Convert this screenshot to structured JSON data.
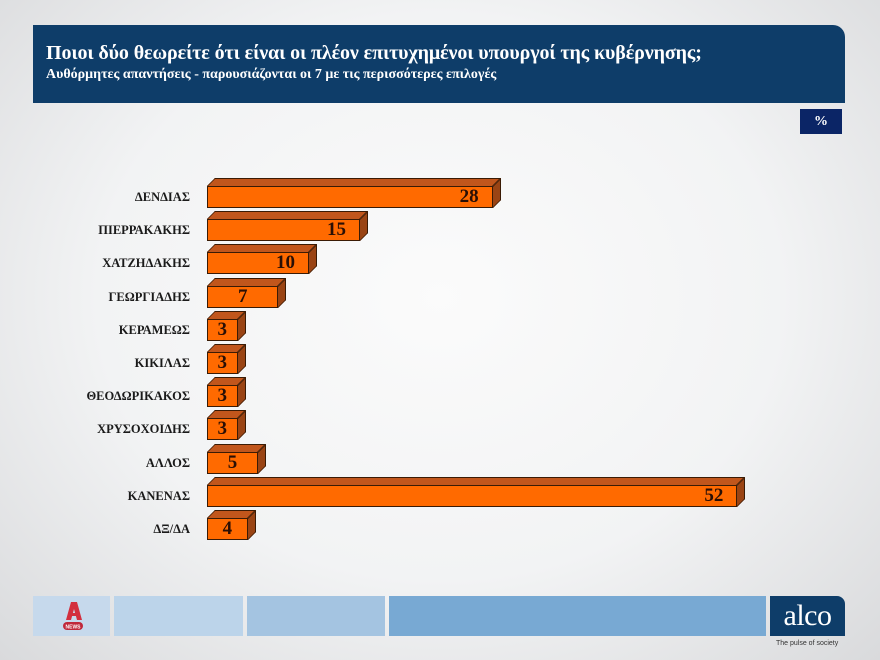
{
  "header": {
    "title": "Ποιοι δύο θεωρείτε ότι είναι οι πλέον επιτυχημένοι υπουργοί της κυβέρνησης;",
    "subtitle": "Αυθόρμητες απαντήσεις - παρουσιάζονται οι 7 με τις περισσότερες επιλογές"
  },
  "unit_badge": "%",
  "footer": {
    "left_logo": "ALPHA NEWS",
    "left_logo_badge": "NEWS",
    "brand": "alco",
    "tagline": "The pulse of society"
  },
  "colors": {
    "header_bg": "#0e3d69",
    "bar_front": "#ff6a00",
    "bar_top": "#c1561c",
    "bar_side": "#9a4414",
    "unit_badge_bg": "#0b2566"
  },
  "chart_data": {
    "type": "bar",
    "orientation": "horizontal",
    "title": "Ποιοι δύο θεωρείτε ότι είναι οι πλέον επιτυχημένοι υπουργοί της κυβέρνησης;",
    "subtitle": "Αυθόρμητες απαντήσεις - παρουσιάζονται οι 7 με τις περισσότερες επιλογές",
    "unit": "%",
    "categories": [
      "ΔΕΝΔΙΑΣ",
      "ΠΙΕΡΡΑΚΑΚΗΣ",
      "ΧΑΤΖΗΔΑΚΗΣ",
      "ΓΕΩΡΓΙΑΔΗΣ",
      "ΚΕΡΑΜΕΩΣ",
      "ΚΙΚΙΛΑΣ",
      "ΘΕΟΔΩΡΙΚΑΚΟΣ",
      "ΧΡΥΣΟΧΟΙΔΗΣ",
      "ΑΛΛΟΣ",
      "ΚΑΝΕΝΑΣ",
      "ΔΞ/ΔΑ"
    ],
    "values": [
      28,
      15,
      10,
      7,
      3,
      3,
      3,
      3,
      5,
      52,
      4
    ],
    "xlabel": "",
    "ylabel": "",
    "grid": false,
    "legend": "none",
    "data_labels": true,
    "style": "3d-bar"
  }
}
